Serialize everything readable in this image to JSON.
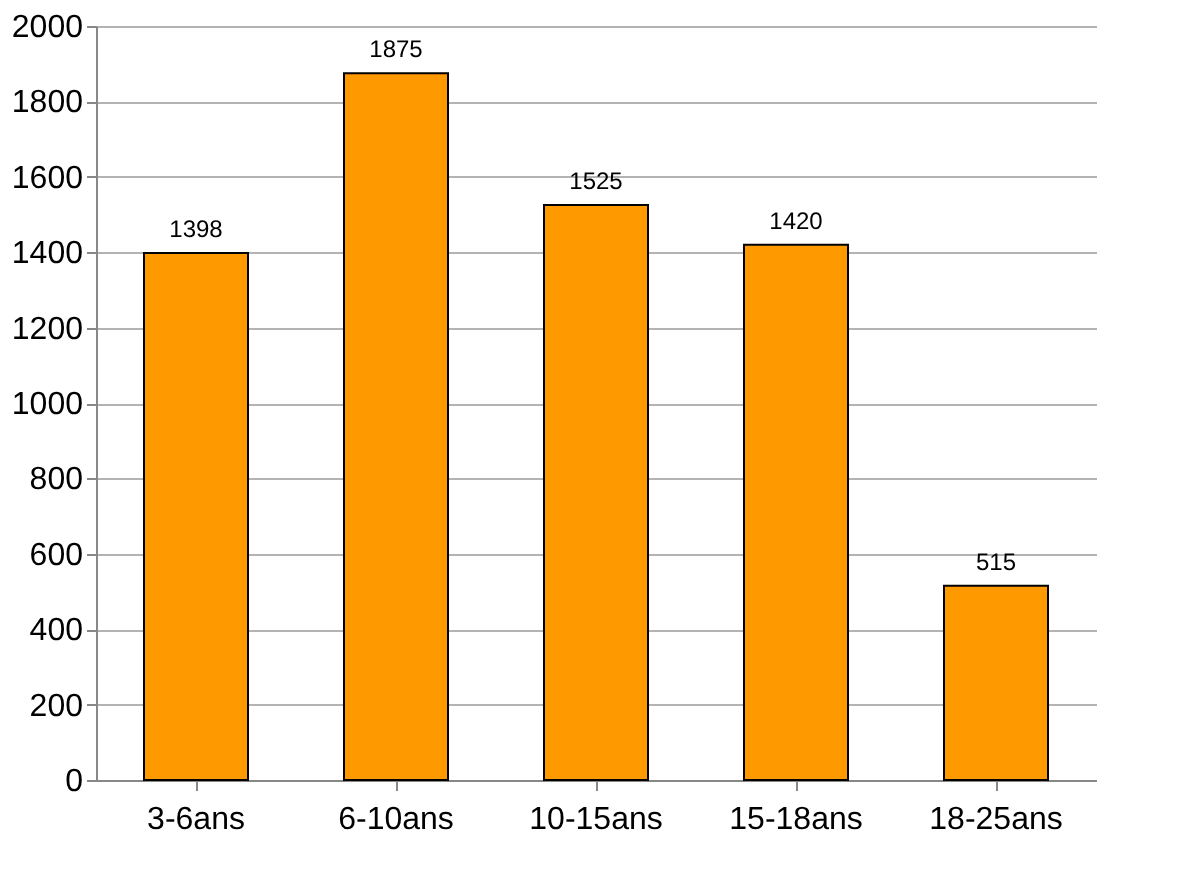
{
  "chart_data": {
    "type": "bar",
    "categories": [
      "3-6ans",
      "6-10ans",
      "10-15ans",
      "15-18ans",
      "18-25ans"
    ],
    "values": [
      1398,
      1875,
      1525,
      1420,
      515
    ],
    "color": "#ff9900",
    "ylim": [
      0,
      2000
    ],
    "yticks": [
      0,
      200,
      400,
      600,
      800,
      1000,
      1200,
      1400,
      1600,
      1800,
      2000
    ],
    "grid": "y",
    "data_labels": true
  }
}
